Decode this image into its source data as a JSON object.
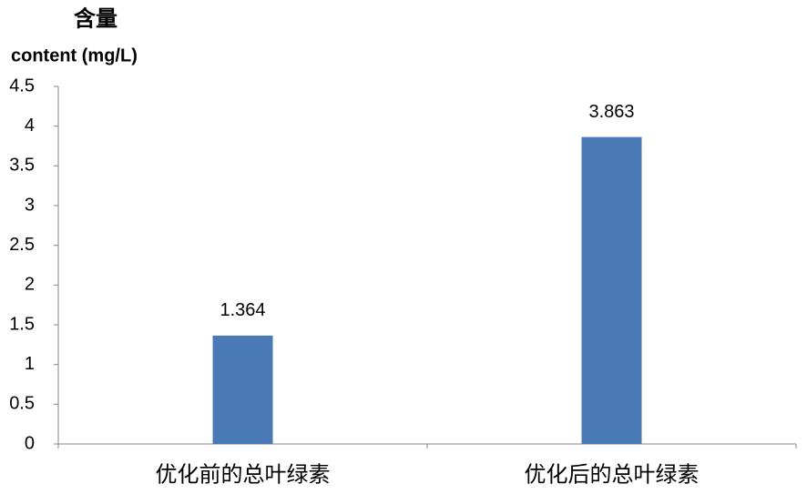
{
  "chart_data": {
    "type": "bar",
    "title": "含量",
    "ylabel": "content (mg/L)",
    "categories": [
      "优化前的总叶绿素",
      "优化后的总叶绿素"
    ],
    "values": [
      1.364,
      3.863
    ],
    "color": "#4a7ab5",
    "ylim": [
      0,
      4.5
    ],
    "yticks": [
      0,
      0.5,
      1,
      1.5,
      2,
      2.5,
      3,
      3.5,
      4,
      4.5
    ],
    "grid": false
  }
}
